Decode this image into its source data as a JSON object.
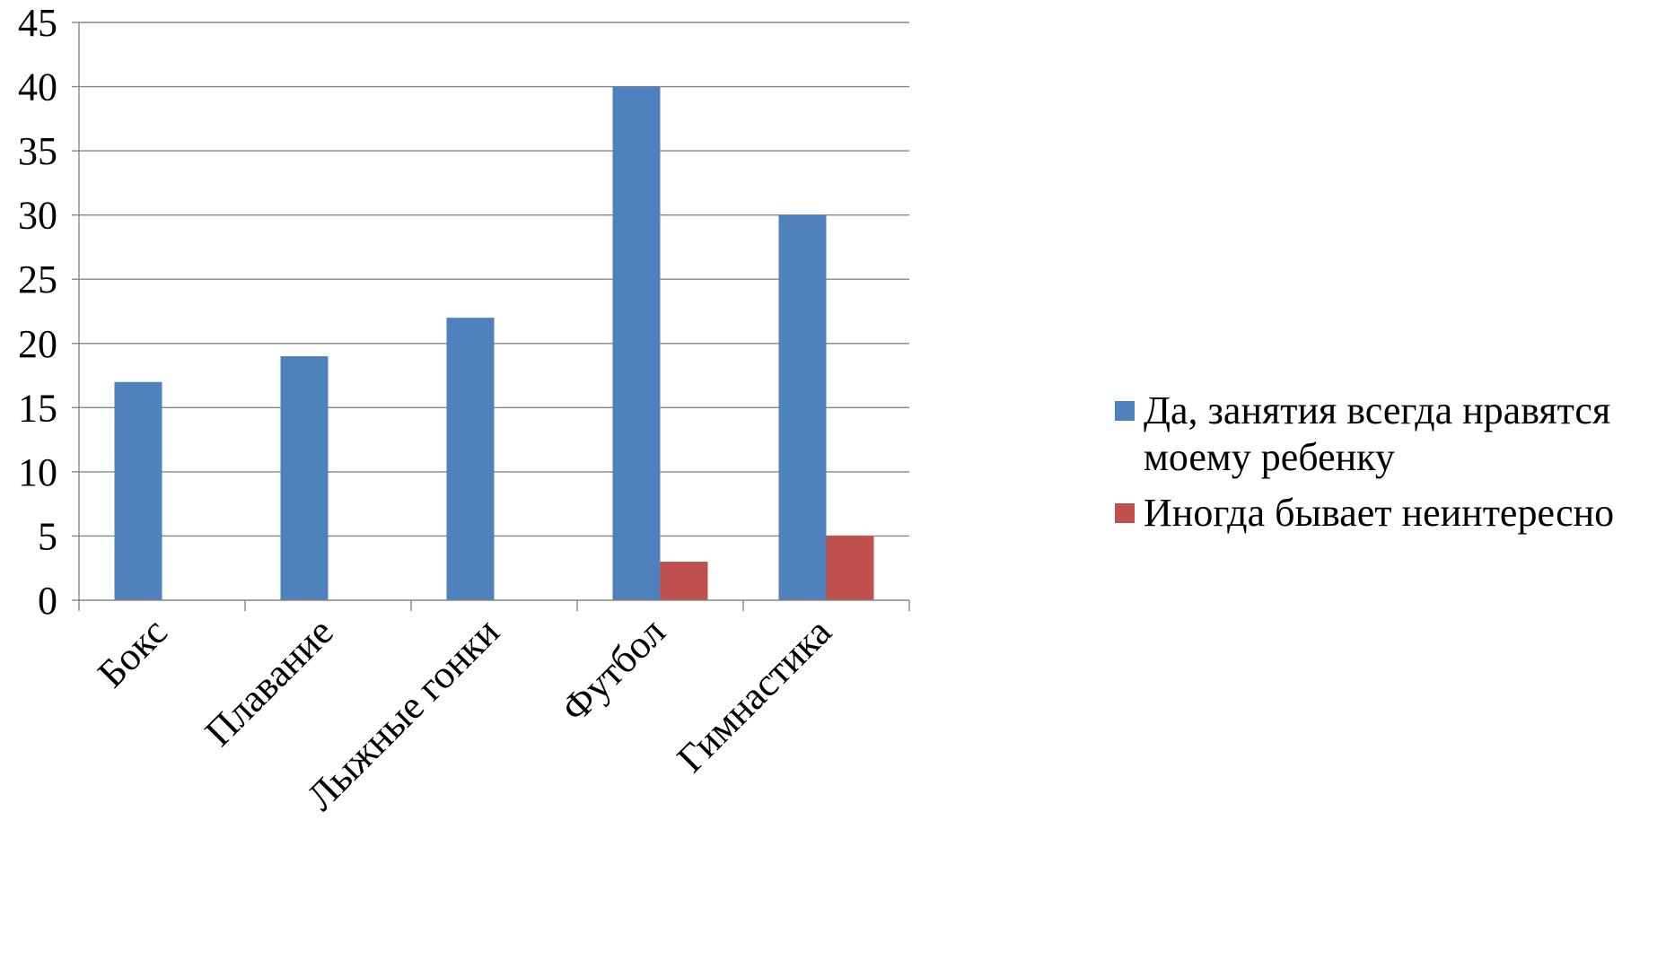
{
  "chart_data": {
    "type": "bar",
    "title": "",
    "xlabel": "",
    "ylabel": "",
    "categories": [
      "Бокс",
      "Плавание",
      "Лыжные гонки",
      "Футбол",
      "Гимнастика"
    ],
    "series": [
      {
        "name": "Да, занятия всегда нравятся моему ребенку",
        "color": "#4F81BD",
        "values": [
          17,
          19,
          22,
          40,
          30
        ]
      },
      {
        "name": "Иногда бывает неинтересно",
        "color": "#C0504D",
        "values": [
          0,
          0,
          0,
          3,
          5
        ]
      }
    ],
    "ylim": [
      0,
      45
    ],
    "yticks": [
      "0",
      "5",
      "10",
      "15",
      "20",
      "25",
      "30",
      "35",
      "40",
      "45"
    ],
    "grid": true,
    "legend_position": "right"
  }
}
